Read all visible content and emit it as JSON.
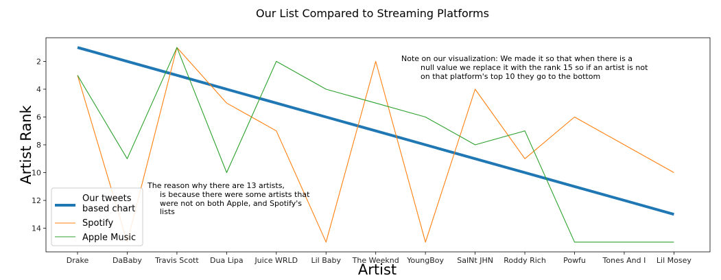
{
  "chart_data": {
    "type": "line",
    "title": "Our List Compared to Streaming Platforms",
    "xlabel": "Artist",
    "ylabel": "Artist Rank",
    "categories": [
      "Drake",
      "DaBaby",
      "Travis Scott",
      "Dua Lipa",
      "Juice WRLD",
      "Lil Baby",
      "The Weeknd",
      "YoungBoy",
      "SaINt JHN",
      "Roddy Rich",
      "Powfu",
      "Tones And I",
      "Lil Mosey"
    ],
    "yticks": [
      "2",
      "4",
      "6",
      "8",
      "10",
      "12",
      "14"
    ],
    "ylim": [
      15.7,
      0.3
    ],
    "y_inverted": true,
    "grid": false,
    "legend_position": "lower-left",
    "series": [
      {
        "name": "Our tweets based chart",
        "color": "#1f77b4",
        "values": [
          1,
          2,
          3,
          4,
          5,
          6,
          7,
          8,
          9,
          10,
          11,
          12,
          13
        ]
      },
      {
        "name": "Spotify",
        "color": "#ff7f0e",
        "values": [
          3,
          15,
          1,
          5,
          7,
          15,
          2,
          15,
          4,
          9,
          6,
          8,
          10
        ]
      },
      {
        "name": "Apple Music",
        "color": "#2ca02c",
        "values": [
          3,
          9,
          1,
          10,
          2,
          4,
          5,
          6,
          8,
          7,
          15,
          15,
          15
        ]
      }
    ],
    "legend_labels": [
      [
        "Our tweets",
        "based chart"
      ],
      [
        "Spotify"
      ],
      [
        "Apple Music"
      ]
    ],
    "annotations": [
      {
        "lines": [
          "Note on our visualization: We made it so that when there is a",
          "null value we replace it with the rank 15 so if an artist is not",
          "on that platform's top 10 they go to the bottom"
        ]
      },
      {
        "lines": [
          "The reason why there are 13 artists,",
          "is because there were some artists that",
          "were not on both Apple, and Spotify's",
          "lists"
        ]
      }
    ]
  }
}
